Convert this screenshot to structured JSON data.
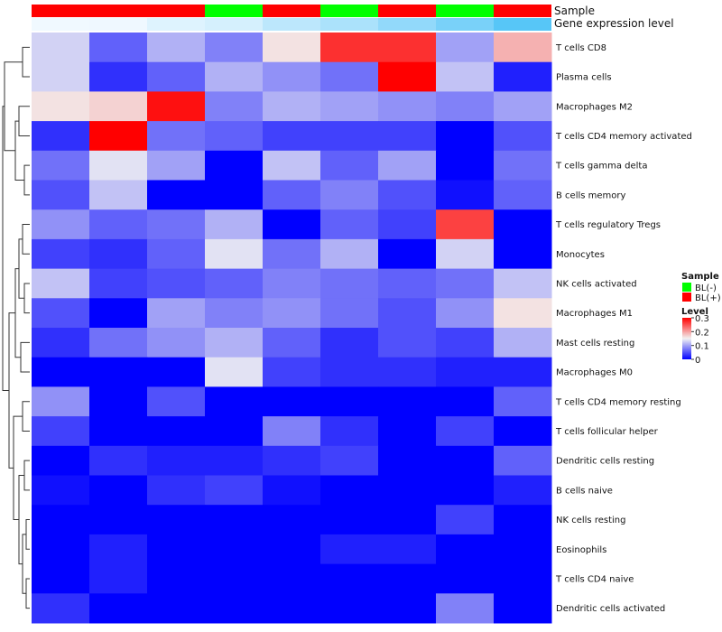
{
  "chart_data": {
    "type": "heatmap",
    "annotation_titles": [
      "Sample",
      "Gene expression level"
    ],
    "sample_annotation": [
      "BL(+)",
      "BL(+)",
      "BL(+)",
      "BL(-)",
      "BL(+)",
      "BL(-)",
      "BL(+)",
      "BL(-)",
      "BL(+)"
    ],
    "expression_annotation": [
      0.04,
      0.05,
      0.15,
      0.2,
      0.35,
      0.45,
      0.6,
      0.75,
      0.95
    ],
    "rows": [
      "T cells CD8",
      "Plasma cells",
      "Macrophages M2",
      "T cells CD4 memory activated",
      "T cells gamma delta",
      "B cells memory",
      "T cells regulatory  Tregs",
      "Monocytes",
      "NK cells activated",
      "Macrophages M1",
      "Mast cells resting",
      "Macrophages M0",
      "T cells CD4 memory resting",
      "T cells follicular helper",
      "Dendritic cells resting",
      "B cells naive",
      "NK cells resting",
      "Eosinophils",
      "T cells CD4 naive",
      "Dendritic cells activated"
    ],
    "values": [
      [
        0.13,
        0.06,
        0.11,
        0.08,
        0.16,
        0.27,
        0.27,
        0.1,
        0.19
      ],
      [
        0.13,
        0.03,
        0.06,
        0.11,
        0.09,
        0.07,
        0.3,
        0.12,
        0.02
      ],
      [
        0.16,
        0.17,
        0.29,
        0.08,
        0.11,
        0.1,
        0.09,
        0.08,
        0.1
      ],
      [
        0.03,
        0.3,
        0.07,
        0.06,
        0.04,
        0.04,
        0.04,
        0.0,
        0.05
      ],
      [
        0.07,
        0.14,
        0.1,
        0.0,
        0.12,
        0.06,
        0.1,
        0.0,
        0.07
      ],
      [
        0.05,
        0.12,
        0.0,
        0.0,
        0.06,
        0.08,
        0.05,
        0.01,
        0.06
      ],
      [
        0.09,
        0.06,
        0.07,
        0.11,
        0.0,
        0.06,
        0.04,
        0.26,
        0.0
      ],
      [
        0.04,
        0.03,
        0.06,
        0.14,
        0.07,
        0.11,
        0.0,
        0.13,
        0.0
      ],
      [
        0.12,
        0.04,
        0.05,
        0.06,
        0.08,
        0.07,
        0.06,
        0.07,
        0.12
      ],
      [
        0.05,
        0.0,
        0.1,
        0.08,
        0.09,
        0.07,
        0.05,
        0.09,
        0.16
      ],
      [
        0.03,
        0.07,
        0.09,
        0.11,
        0.06,
        0.03,
        0.05,
        0.04,
        0.11
      ],
      [
        0.0,
        0.0,
        0.0,
        0.14,
        0.04,
        0.03,
        0.03,
        0.02,
        0.02
      ],
      [
        0.09,
        0.0,
        0.05,
        0.0,
        0.0,
        0.0,
        0.0,
        0.0,
        0.06
      ],
      [
        0.04,
        0.0,
        0.0,
        0.0,
        0.08,
        0.03,
        0.0,
        0.04,
        0.0
      ],
      [
        0.0,
        0.03,
        0.02,
        0.02,
        0.03,
        0.04,
        0.0,
        0.0,
        0.06
      ],
      [
        0.01,
        0.0,
        0.03,
        0.04,
        0.01,
        0.0,
        0.0,
        0.0,
        0.02
      ],
      [
        0.0,
        0.0,
        0.0,
        0.0,
        0.0,
        0.0,
        0.0,
        0.04,
        0.0
      ],
      [
        0.0,
        0.02,
        0.0,
        0.0,
        0.0,
        0.02,
        0.02,
        0.0,
        0.0
      ],
      [
        0.0,
        0.02,
        0.0,
        0.0,
        0.0,
        0.0,
        0.0,
        0.0,
        0.0
      ],
      [
        0.03,
        0.0,
        0.0,
        0.0,
        0.0,
        0.0,
        0.0,
        0.08,
        0.0
      ]
    ],
    "color_scale": {
      "low": "#0000ff",
      "mid": "#f2f2f2",
      "high": "#ff0000",
      "min": 0,
      "mid_value": 0.15,
      "max": 0.3
    },
    "annotation_colors": {
      "BL(-)": "#00ff00",
      "BL(+)": "#ff0000",
      "expr_low": "#f7fbff",
      "expr_high": "#4fc3f7"
    },
    "legend": {
      "sample_title": "Sample",
      "sample_items": [
        "BL(-)",
        "BL(+)"
      ],
      "level_title": "Level",
      "level_ticks": [
        0.3,
        0.2,
        0.1,
        0
      ]
    }
  }
}
